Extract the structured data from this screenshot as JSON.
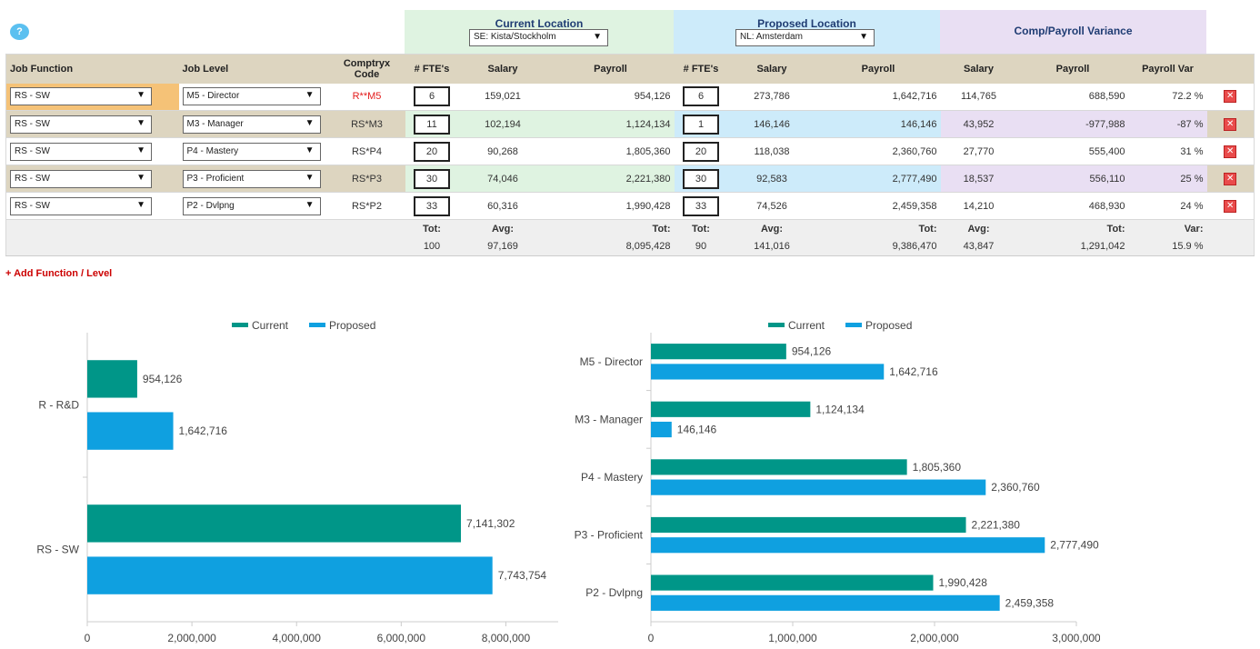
{
  "help": {
    "icon": "question-icon",
    "label": "?"
  },
  "locations": {
    "current": {
      "title": "Current Location",
      "value": "SE: Kista/Stockholm"
    },
    "proposed": {
      "title": "Proposed Location",
      "value": "NL: Amsterdam"
    },
    "variance": {
      "title": "Comp/Payroll Variance"
    }
  },
  "columns": {
    "job_function": "Job Function",
    "job_level": "Job Level",
    "code": "Comptryx Code",
    "cur_fte": "# FTE's",
    "cur_salary": "Salary",
    "cur_payroll": "Payroll",
    "prop_fte": "# FTE's",
    "prop_salary": "Salary",
    "prop_payroll": "Payroll",
    "var_salary": "Salary",
    "var_payroll": "Payroll",
    "var_pct": "Payroll Var"
  },
  "rows": [
    {
      "function": "RS - SW",
      "level": "M5 - Director",
      "code": "R**M5",
      "code_alert": true,
      "cur_fte": "6",
      "cur_salary": "159,021",
      "cur_payroll": "954,126",
      "prop_fte": "6",
      "prop_salary": "273,786",
      "prop_payroll": "1,642,716",
      "var_salary": "114,765",
      "var_payroll": "688,590",
      "var_pct": "72.2 %"
    },
    {
      "function": "RS - SW",
      "level": "M3 - Manager",
      "code": "RS*M3",
      "cur_fte": "11",
      "cur_salary": "102,194",
      "cur_payroll": "1,124,134",
      "prop_fte": "1",
      "prop_salary": "146,146",
      "prop_payroll": "146,146",
      "var_salary": "43,952",
      "var_payroll": "-977,988",
      "var_pct": "-87 %"
    },
    {
      "function": "RS - SW",
      "level": "P4 - Mastery",
      "code": "RS*P4",
      "cur_fte": "20",
      "cur_salary": "90,268",
      "cur_payroll": "1,805,360",
      "prop_fte": "20",
      "prop_salary": "118,038",
      "prop_payroll": "2,360,760",
      "var_salary": "27,770",
      "var_payroll": "555,400",
      "var_pct": "31 %"
    },
    {
      "function": "RS - SW",
      "level": "P3 - Proficient",
      "code": "RS*P3",
      "cur_fte": "30",
      "cur_salary": "74,046",
      "cur_payroll": "2,221,380",
      "prop_fte": "30",
      "prop_salary": "92,583",
      "prop_payroll": "2,777,490",
      "var_salary": "18,537",
      "var_payroll": "556,110",
      "var_pct": "25 %"
    },
    {
      "function": "RS - SW",
      "level": "P2 - Dvlpng",
      "code": "RS*P2",
      "cur_fte": "33",
      "cur_salary": "60,316",
      "cur_payroll": "1,990,428",
      "prop_fte": "33",
      "prop_salary": "74,526",
      "prop_payroll": "2,459,358",
      "var_salary": "14,210",
      "var_payroll": "468,930",
      "var_pct": "24 %"
    }
  ],
  "totals": {
    "labels": {
      "cur_fte": "Tot:",
      "cur_salary": "Avg:",
      "cur_payroll": "Tot:",
      "prop_fte": "Tot:",
      "prop_salary": "Avg:",
      "prop_payroll": "Tot:",
      "var_salary": "Avg:",
      "var_payroll": "Tot:",
      "var_pct": "Var:"
    },
    "values": {
      "cur_fte": "100",
      "cur_salary": "97,169",
      "cur_payroll": "8,095,428",
      "prop_fte": "90",
      "prop_salary": "141,016",
      "prop_payroll": "9,386,470",
      "var_salary": "43,847",
      "var_payroll": "1,291,042",
      "var_pct": "15.9 %"
    }
  },
  "add_link": "+ Add Function / Level",
  "colors": {
    "current": "#009688",
    "proposed": "#0fa0e0",
    "alert": "#e31b1b"
  },
  "chart_data": [
    {
      "type": "bar",
      "orientation": "horizontal",
      "categories": [
        "R - R&D",
        "RS - SW"
      ],
      "series": [
        {
          "name": "Current",
          "values": [
            954126,
            7141302
          ],
          "labels": [
            "954,126",
            "7,141,302"
          ]
        },
        {
          "name": "Proposed",
          "values": [
            1642716,
            7743754
          ],
          "labels": [
            "1,642,716",
            "7,743,754"
          ]
        }
      ],
      "xlim": [
        0,
        9000000
      ],
      "xticks": [
        0,
        2000000,
        4000000,
        6000000,
        8000000
      ],
      "xtick_labels": [
        "0",
        "2,000,000",
        "4,000,000",
        "6,000,000",
        "8,000,000"
      ],
      "legend": "top-center",
      "grid": false
    },
    {
      "type": "bar",
      "orientation": "horizontal",
      "categories": [
        "M5 - Director",
        "M3 - Manager",
        "P4 - Mastery",
        "P3 - Proficient",
        "P2 - Dvlpng"
      ],
      "series": [
        {
          "name": "Current",
          "values": [
            954126,
            1124134,
            1805360,
            2221380,
            1990428
          ],
          "labels": [
            "954,126",
            "1,124,134",
            "1,805,360",
            "2,221,380",
            "1,990,428"
          ]
        },
        {
          "name": "Proposed",
          "values": [
            1642716,
            146146,
            2360760,
            2777490,
            2459358
          ],
          "labels": [
            "1,642,716",
            "146,146",
            "2,360,760",
            "2,777,490",
            "2,459,358"
          ]
        }
      ],
      "xlim": [
        0,
        3000000
      ],
      "xticks": [
        0,
        1000000,
        2000000,
        3000000
      ],
      "xtick_labels": [
        "0",
        "1,000,000",
        "2,000,000",
        "3,000,000"
      ],
      "legend": "top-center",
      "grid": false
    }
  ]
}
